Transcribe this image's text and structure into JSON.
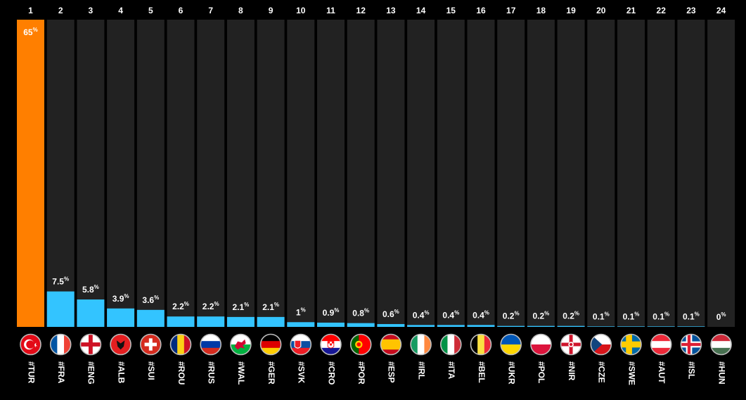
{
  "chart_data": {
    "type": "bar",
    "title": "",
    "xlabel": "",
    "ylabel": "",
    "ylim": [
      0,
      65
    ],
    "unit": "%",
    "colors": {
      "highlight": "#ff7f00",
      "bar": "#33c4ff",
      "column_bg": "#222222",
      "background": "#000000"
    },
    "categories": [
      {
        "rank": "1",
        "tag": "#TUR",
        "value": 65,
        "label": "65",
        "flag": "flag-turkey",
        "highlight": true
      },
      {
        "rank": "2",
        "tag": "#FRA",
        "value": 7.5,
        "label": "7.5",
        "flag": "flag-france"
      },
      {
        "rank": "3",
        "tag": "#ENG",
        "value": 5.8,
        "label": "5.8",
        "flag": "flag-england"
      },
      {
        "rank": "4",
        "tag": "#ALB",
        "value": 3.9,
        "label": "3.9",
        "flag": "flag-albania"
      },
      {
        "rank": "5",
        "tag": "#SUI",
        "value": 3.6,
        "label": "3.6",
        "flag": "flag-switzerland"
      },
      {
        "rank": "6",
        "tag": "#ROU",
        "value": 2.2,
        "label": "2.2",
        "flag": "flag-romania"
      },
      {
        "rank": "7",
        "tag": "#RUS",
        "value": 2.2,
        "label": "2.2",
        "flag": "flag-russia"
      },
      {
        "rank": "8",
        "tag": "#WAL",
        "value": 2.1,
        "label": "2.1",
        "flag": "flag-wales"
      },
      {
        "rank": "9",
        "tag": "#GER",
        "value": 2.1,
        "label": "2.1",
        "flag": "flag-germany"
      },
      {
        "rank": "10",
        "tag": "#SVK",
        "value": 1,
        "label": "1",
        "flag": "flag-slovakia"
      },
      {
        "rank": "11",
        "tag": "#CRO",
        "value": 0.9,
        "label": "0.9",
        "flag": "flag-croatia"
      },
      {
        "rank": "12",
        "tag": "#POR",
        "value": 0.8,
        "label": "0.8",
        "flag": "flag-portugal"
      },
      {
        "rank": "13",
        "tag": "#ESP",
        "value": 0.6,
        "label": "0.6",
        "flag": "flag-spain"
      },
      {
        "rank": "14",
        "tag": "#IRL",
        "value": 0.4,
        "label": "0.4",
        "flag": "flag-ireland"
      },
      {
        "rank": "15",
        "tag": "#ITA",
        "value": 0.4,
        "label": "0.4",
        "flag": "flag-italy"
      },
      {
        "rank": "16",
        "tag": "#BEL",
        "value": 0.4,
        "label": "0.4",
        "flag": "flag-belgium"
      },
      {
        "rank": "17",
        "tag": "#UKR",
        "value": 0.2,
        "label": "0.2",
        "flag": "flag-ukraine"
      },
      {
        "rank": "18",
        "tag": "#POL",
        "value": 0.2,
        "label": "0.2",
        "flag": "flag-poland"
      },
      {
        "rank": "19",
        "tag": "#NIR",
        "value": 0.2,
        "label": "0.2",
        "flag": "flag-northern-ireland"
      },
      {
        "rank": "20",
        "tag": "#CZE",
        "value": 0.1,
        "label": "0.1",
        "flag": "flag-czech-republic"
      },
      {
        "rank": "21",
        "tag": "#SWE",
        "value": 0.1,
        "label": "0.1",
        "flag": "flag-sweden"
      },
      {
        "rank": "22",
        "tag": "#AUT",
        "value": 0.1,
        "label": "0.1",
        "flag": "flag-austria"
      },
      {
        "rank": "23",
        "tag": "#ISL",
        "value": 0.1,
        "label": "0.1",
        "flag": "flag-iceland"
      },
      {
        "rank": "24",
        "tag": "#HUN",
        "value": 0,
        "label": "0",
        "flag": "flag-hungary"
      }
    ]
  }
}
